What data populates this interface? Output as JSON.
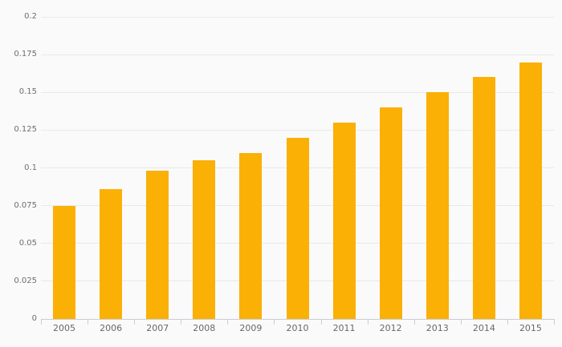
{
  "chart_data": {
    "type": "bar",
    "title": "",
    "xlabel": "",
    "ylabel": "",
    "categories": [
      "2005",
      "2006",
      "2007",
      "2008",
      "2009",
      "2010",
      "2011",
      "2012",
      "2013",
      "2014",
      "2015"
    ],
    "values": [
      0.075,
      0.086,
      0.098,
      0.105,
      0.11,
      0.12,
      0.13,
      0.14,
      0.15,
      0.16,
      0.17
    ],
    "ylim": [
      0,
      0.2
    ],
    "yticks": [
      0,
      0.025,
      0.05,
      0.075,
      0.1,
      0.125,
      0.15,
      0.175,
      0.2
    ],
    "ytick_labels": [
      "0",
      "0.025",
      "0.05",
      "0.075",
      "0.1",
      "0.125",
      "0.15",
      "0.175",
      "0.2"
    ],
    "grid": true,
    "legend": "none",
    "colors": {
      "bar": "#FAB005",
      "background": "#FAFAFA",
      "gridline": "#E9E9E9",
      "axis_line": "#C9CDD6",
      "tick": "#C9CDD6",
      "x_label_text": "#65686C",
      "y_label_text": "#6B6E72"
    }
  }
}
